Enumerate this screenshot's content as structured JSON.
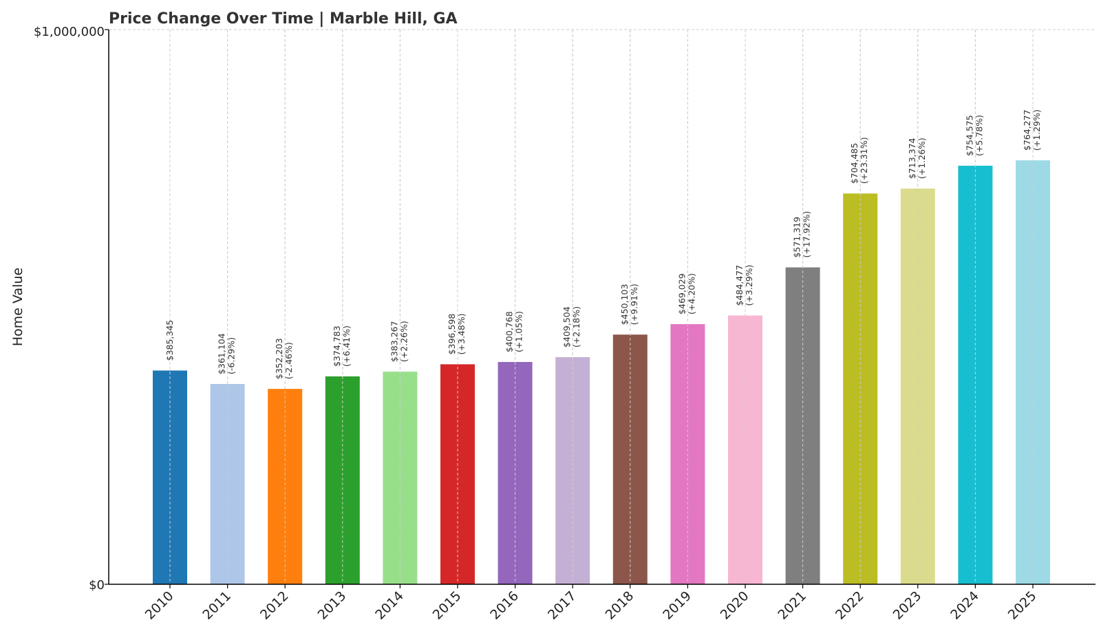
{
  "chart_data": {
    "type": "bar",
    "title": "Price Change Over Time | Marble Hill, GA",
    "xlabel": "",
    "ylabel": "Home Value",
    "ylim": [
      0,
      1000000
    ],
    "ytick_labels": [
      "$0",
      "$1,000,000"
    ],
    "grid": true,
    "legend": "none",
    "categories": [
      "2010",
      "2011",
      "2012",
      "2013",
      "2014",
      "2015",
      "2016",
      "2017",
      "2018",
      "2019",
      "2020",
      "2021",
      "2022",
      "2023",
      "2024",
      "2025"
    ],
    "values": [
      385345,
      361104,
      352203,
      374783,
      383267,
      396598,
      400768,
      409504,
      450103,
      469029,
      484477,
      571319,
      704485,
      713374,
      754575,
      764277
    ],
    "value_labels": [
      "$385,345",
      "$361,104",
      "$352,203",
      "$374,783",
      "$383,267",
      "$396,598",
      "$400,768",
      "$409,504",
      "$450,103",
      "$469,029",
      "$484,477",
      "$571,319",
      "$704,485",
      "$713,374",
      "$754,575",
      "$764,277"
    ],
    "change_labels": [
      "",
      "(-6.29%)",
      "(-2.46%)",
      "(+6.41%)",
      "(+2.26%)",
      "(+3.48%)",
      "(+1.05%)",
      "(+2.18%)",
      "(+9.91%)",
      "(+4.20%)",
      "(+3.29%)",
      "(+17.92%)",
      "(+23.31%)",
      "(+1.26%)",
      "(+5.78%)",
      "(+1.29%)"
    ],
    "colors": [
      "#1f77b4",
      "#aec7e8",
      "#ff7f0e",
      "#2ca02c",
      "#98df8a",
      "#d62728",
      "#9467bd",
      "#c5b0d5",
      "#8c564b",
      "#e377c2",
      "#f7b6d2",
      "#7f7f7f",
      "#bcbd22",
      "#dbdb8d",
      "#17becf",
      "#9edae5"
    ]
  }
}
